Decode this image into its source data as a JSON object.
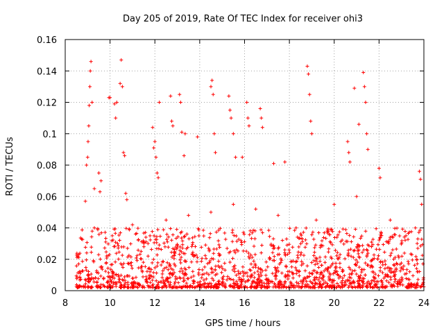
{
  "chart_data": {
    "type": "scatter",
    "title": "Day 205 of 2019, Rate Of TEC Index for receiver ohi3",
    "xlabel": "GPS time / hours",
    "ylabel": "ROTI / TECUs",
    "xlim": [
      8,
      24
    ],
    "ylim": [
      0,
      0.16
    ],
    "grid": true,
    "marker": "plus",
    "color": "#ff0000",
    "x_ticks": [
      8,
      10,
      12,
      14,
      16,
      18,
      20,
      22,
      24
    ],
    "x_tick_labels": [
      "8",
      "10",
      "12",
      "14",
      "16",
      "18",
      "20",
      "22",
      "24"
    ],
    "y_ticks": [
      0,
      0.02,
      0.04,
      0.06,
      0.08,
      0.1,
      0.12,
      0.14,
      0.16
    ],
    "y_tick_labels": [
      "0",
      "0.02",
      "0.04",
      "0.06",
      "0.08",
      "0.1",
      "0.12",
      "0.14",
      "0.16"
    ],
    "series": [
      {
        "name": "ROTI",
        "points": [
          [
            8.9,
            0.057
          ],
          [
            8.95,
            0.08
          ],
          [
            9.0,
            0.085
          ],
          [
            9.02,
            0.095
          ],
          [
            9.05,
            0.105
          ],
          [
            9.07,
            0.118
          ],
          [
            9.1,
            0.13
          ],
          [
            9.12,
            0.14
          ],
          [
            9.15,
            0.146
          ],
          [
            9.2,
            0.12
          ],
          [
            9.3,
            0.065
          ],
          [
            9.5,
            0.075
          ],
          [
            9.55,
            0.063
          ],
          [
            9.6,
            0.07
          ],
          [
            9.95,
            0.123
          ],
          [
            10.0,
            0.123
          ],
          [
            10.2,
            0.119
          ],
          [
            10.25,
            0.11
          ],
          [
            10.3,
            0.12
          ],
          [
            10.45,
            0.132
          ],
          [
            10.5,
            0.147
          ],
          [
            10.55,
            0.13
          ],
          [
            10.6,
            0.088
          ],
          [
            10.65,
            0.086
          ],
          [
            10.7,
            0.062
          ],
          [
            10.75,
            0.058
          ],
          [
            11.9,
            0.104
          ],
          [
            11.95,
            0.091
          ],
          [
            12.0,
            0.095
          ],
          [
            12.05,
            0.085
          ],
          [
            12.1,
            0.075
          ],
          [
            12.15,
            0.072
          ],
          [
            12.2,
            0.12
          ],
          [
            12.7,
            0.124
          ],
          [
            12.75,
            0.108
          ],
          [
            12.8,
            0.105
          ],
          [
            13.1,
            0.125
          ],
          [
            13.15,
            0.12
          ],
          [
            13.2,
            0.101
          ],
          [
            13.3,
            0.086
          ],
          [
            13.35,
            0.1
          ],
          [
            13.9,
            0.098
          ],
          [
            14.5,
            0.13
          ],
          [
            14.55,
            0.134
          ],
          [
            14.6,
            0.125
          ],
          [
            14.65,
            0.1
          ],
          [
            14.7,
            0.088
          ],
          [
            15.3,
            0.124
          ],
          [
            15.35,
            0.115
          ],
          [
            15.4,
            0.11
          ],
          [
            15.5,
            0.1
          ],
          [
            15.6,
            0.085
          ],
          [
            15.9,
            0.085
          ],
          [
            16.1,
            0.12
          ],
          [
            16.15,
            0.11
          ],
          [
            16.2,
            0.105
          ],
          [
            16.7,
            0.116
          ],
          [
            16.75,
            0.11
          ],
          [
            16.8,
            0.104
          ],
          [
            17.3,
            0.081
          ],
          [
            17.8,
            0.082
          ],
          [
            18.8,
            0.143
          ],
          [
            18.85,
            0.138
          ],
          [
            18.9,
            0.125
          ],
          [
            18.95,
            0.108
          ],
          [
            19.0,
            0.1
          ],
          [
            20.6,
            0.095
          ],
          [
            20.65,
            0.088
          ],
          [
            20.7,
            0.082
          ],
          [
            20.9,
            0.129
          ],
          [
            21.1,
            0.106
          ],
          [
            21.3,
            0.139
          ],
          [
            21.35,
            0.13
          ],
          [
            21.4,
            0.12
          ],
          [
            21.45,
            0.1
          ],
          [
            21.5,
            0.09
          ],
          [
            23.8,
            0.076
          ],
          [
            23.85,
            0.071
          ],
          [
            23.9,
            0.055
          ],
          [
            22.0,
            0.078
          ],
          [
            22.05,
            0.072
          ],
          [
            9.3,
            0.04
          ],
          [
            10.1,
            0.035
          ],
          [
            11.0,
            0.042
          ],
          [
            12.5,
            0.045
          ],
          [
            13.5,
            0.048
          ],
          [
            14.5,
            0.05
          ],
          [
            15.5,
            0.055
          ],
          [
            16.5,
            0.052
          ],
          [
            17.5,
            0.048
          ],
          [
            18.3,
            0.04
          ],
          [
            19.2,
            0.045
          ],
          [
            20.0,
            0.055
          ],
          [
            21.0,
            0.06
          ],
          [
            22.5,
            0.045
          ],
          [
            23.2,
            0.035
          ]
        ]
      }
    ],
    "dense_band": {
      "description": "dense cluster of low ROTI values throughout the day",
      "x_range": [
        8.5,
        24
      ],
      "y_range": [
        0.002,
        0.04
      ]
    }
  }
}
